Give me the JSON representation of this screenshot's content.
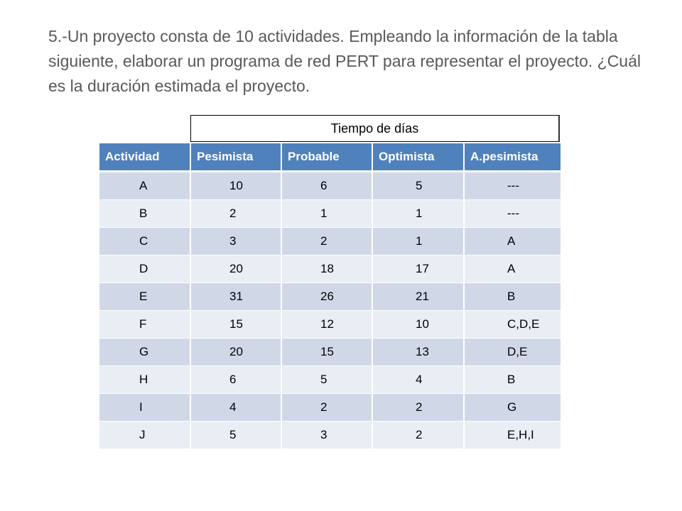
{
  "problem_text": "5.-Un proyecto consta de 10 actividades. Empleando la información de la tabla siguiente, elaborar un programa de red PERT para representar el proyecto. ¿Cuál es la duración estimada el proyecto.",
  "table": {
    "super_header": "Tiempo de días",
    "headers": [
      "Actividad",
      "Pesimista",
      "Probable",
      "Optimista",
      "A.pesimista"
    ],
    "rows": [
      [
        "A",
        "10",
        "6",
        "5",
        "---"
      ],
      [
        "B",
        "2",
        "1",
        "1",
        "---"
      ],
      [
        "C",
        "3",
        "2",
        "1",
        "A"
      ],
      [
        "D",
        "20",
        "18",
        "17",
        "A"
      ],
      [
        "E",
        "31",
        "26",
        "21",
        "B"
      ],
      [
        "F",
        "15",
        "12",
        "10",
        "C,D,E"
      ],
      [
        "G",
        "20",
        "15",
        "13",
        "D,E"
      ],
      [
        "H",
        "6",
        "5",
        "4",
        "B"
      ],
      [
        "I",
        "4",
        "2",
        "2",
        "G"
      ],
      [
        "J",
        "5",
        "3",
        "2",
        "E,H,I"
      ]
    ]
  },
  "colors": {
    "header_bg": "#4f81bd",
    "row_dark": "#d0d8e8",
    "row_light": "#e9edf4",
    "text_gray": "#595959"
  }
}
